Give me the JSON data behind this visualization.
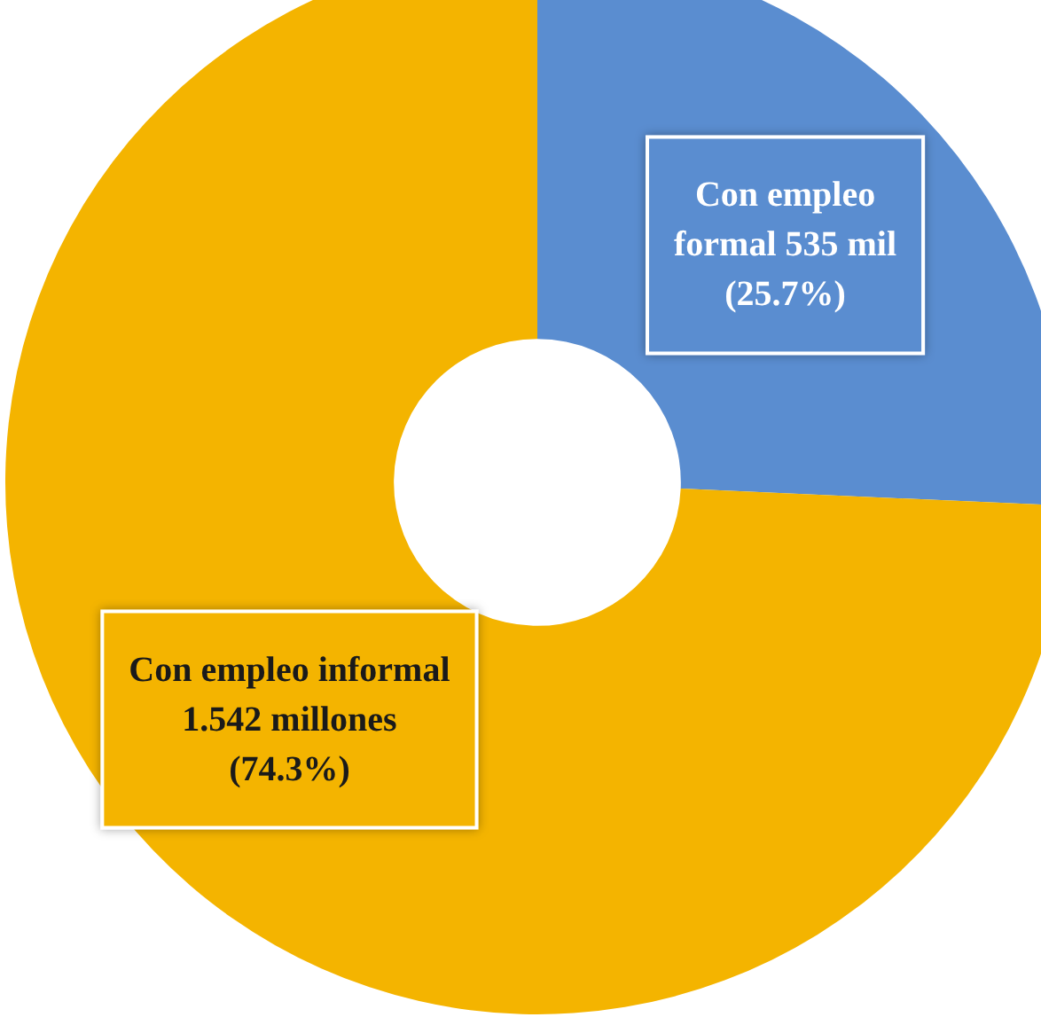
{
  "chart_data": {
    "type": "donut",
    "categories": [
      "Con empleo\nformal 535 mil\n(25.7%)",
      "Con empleo informal\n1.542 millones\n(74.3%)"
    ],
    "values": [
      25.7,
      74.3
    ],
    "colors": [
      "#5a8dd0",
      "#f4b400"
    ]
  }
}
